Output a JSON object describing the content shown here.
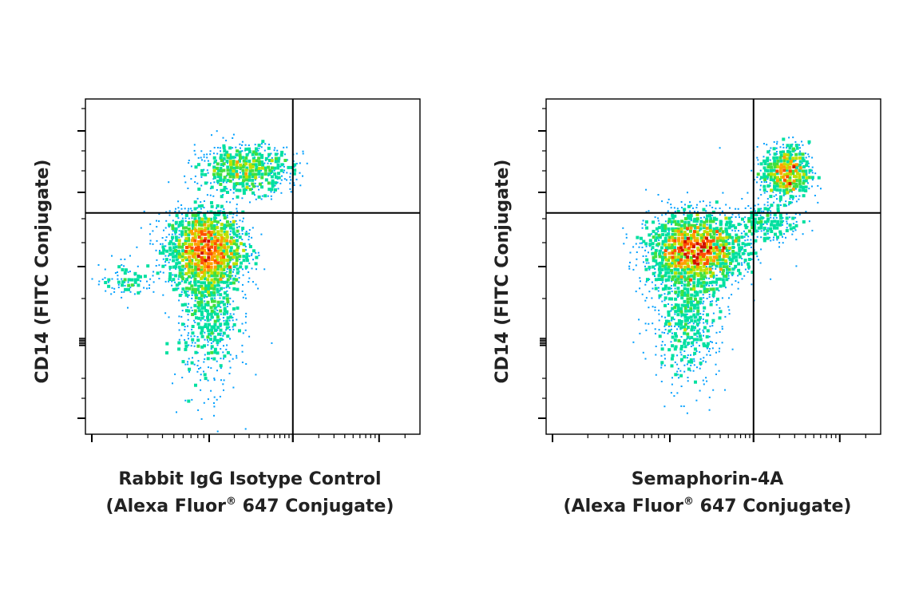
{
  "chart_data": [
    {
      "type": "scatter",
      "subtype": "flow-cytometry-density-dot-plot",
      "xlabel_line1": "Rabbit IgG Isotype Control",
      "xlabel_line2_pre": "(Alexa Fluor",
      "xlabel_line2_sup": "®",
      "xlabel_line2_post": " 647 Conjugate)",
      "ylabel": "CD14 (FITC Conjugate)",
      "x_scale": "log",
      "y_scale": "log",
      "x_range": [
        0,
        1
      ],
      "y_range": [
        0,
        1
      ],
      "quadrant_gate": {
        "x": 0.62,
        "y": 0.66
      },
      "grid": false,
      "populations": [
        {
          "name": "",
          "cx": 0.36,
          "cy": 0.55,
          "sx": 0.055,
          "sy": 0.055,
          "n": 2600
        },
        {
          "name": "",
          "cx": 0.37,
          "cy": 0.38,
          "sx": 0.045,
          "sy": 0.12,
          "n": 900
        },
        {
          "name": "",
          "cx": 0.48,
          "cy": 0.79,
          "sx": 0.07,
          "sy": 0.035,
          "n": 900
        },
        {
          "name": "",
          "cx": 0.13,
          "cy": 0.46,
          "sx": 0.04,
          "sy": 0.025,
          "n": 120
        }
      ]
    },
    {
      "type": "scatter",
      "subtype": "flow-cytometry-density-dot-plot",
      "xlabel_line1": "Semaphorin-4A",
      "xlabel_line2_pre": "(Alexa Fluor",
      "xlabel_line2_sup": "®",
      "xlabel_line2_post": " 647 Conjugate)",
      "ylabel": "CD14 (FITC Conjugate)",
      "x_scale": "log",
      "y_scale": "log",
      "x_range": [
        0,
        1
      ],
      "y_range": [
        0,
        1
      ],
      "quadrant_gate": {
        "x": 0.62,
        "y": 0.66
      },
      "grid": false,
      "populations": [
        {
          "name": "",
          "cx": 0.45,
          "cy": 0.55,
          "sx": 0.07,
          "sy": 0.05,
          "n": 2600
        },
        {
          "name": "",
          "cx": 0.42,
          "cy": 0.38,
          "sx": 0.05,
          "sy": 0.11,
          "n": 900
        },
        {
          "name": "",
          "cx": 0.72,
          "cy": 0.78,
          "sx": 0.035,
          "sy": 0.04,
          "n": 900
        },
        {
          "name": "",
          "cx": 0.66,
          "cy": 0.63,
          "sx": 0.05,
          "sy": 0.03,
          "n": 260
        }
      ]
    }
  ],
  "colormap": [
    "#0000ff",
    "#00a0ff",
    "#00e0a0",
    "#40e040",
    "#c0e000",
    "#ffa000",
    "#ff5000",
    "#d01000"
  ]
}
